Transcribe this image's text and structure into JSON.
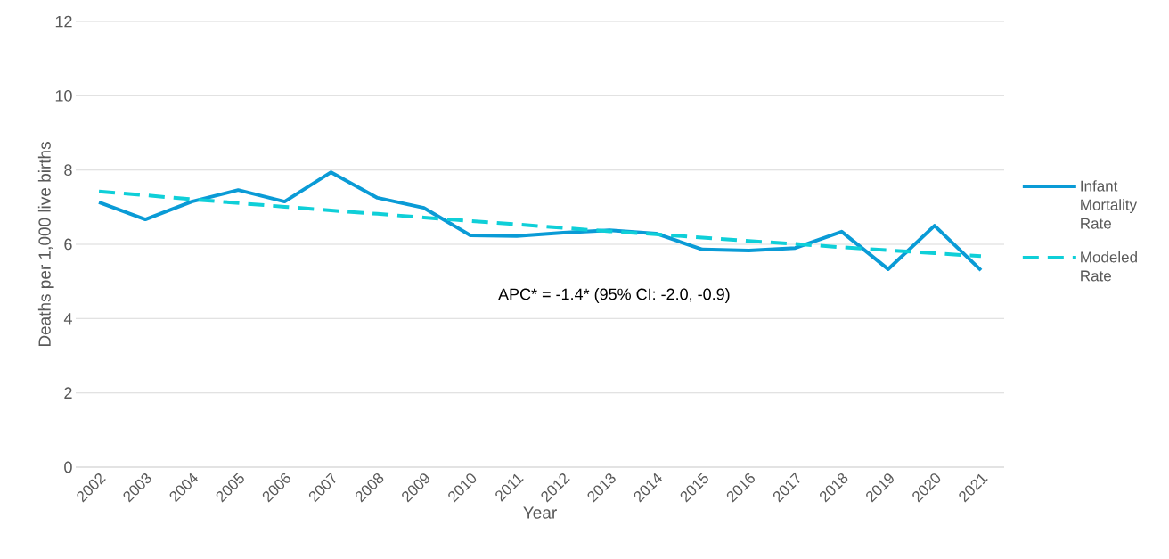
{
  "chart_data": {
    "type": "line",
    "xlabel": "Year",
    "ylabel": "Deaths per 1,000 live births",
    "categories": [
      "2002",
      "2003",
      "2004",
      "2005",
      "2006",
      "2007",
      "2008",
      "2009",
      "2010",
      "2011",
      "2012",
      "2013",
      "2014",
      "2015",
      "2016",
      "2017",
      "2018",
      "2019",
      "2020",
      "2021"
    ],
    "series": [
      {
        "name": "Infant Mortality Rate",
        "color": "#0a9bd6",
        "line_style": "solid",
        "values": [
          7.13,
          6.67,
          7.15,
          7.46,
          7.15,
          7.94,
          7.25,
          6.98,
          6.24,
          6.22,
          6.31,
          6.38,
          6.29,
          5.86,
          5.83,
          5.9,
          6.34,
          5.33,
          6.5,
          5.3
        ]
      },
      {
        "name": "Modeled Rate",
        "color": "#0fcfd8",
        "line_style": "dashed",
        "values": [
          7.42,
          7.32,
          7.21,
          7.11,
          7.01,
          6.91,
          6.82,
          6.72,
          6.63,
          6.54,
          6.44,
          6.35,
          6.27,
          6.18,
          6.09,
          6.01,
          5.92,
          5.84,
          5.76,
          5.68
        ]
      }
    ],
    "ylim": [
      0,
      12
    ],
    "yticks": [
      0,
      2,
      4,
      6,
      8,
      10,
      12
    ],
    "grid": "y",
    "legend": "right",
    "marker": "none",
    "annotations": [
      "APC* = -1.4* (95% CI: -2.0, -0.9)"
    ]
  }
}
